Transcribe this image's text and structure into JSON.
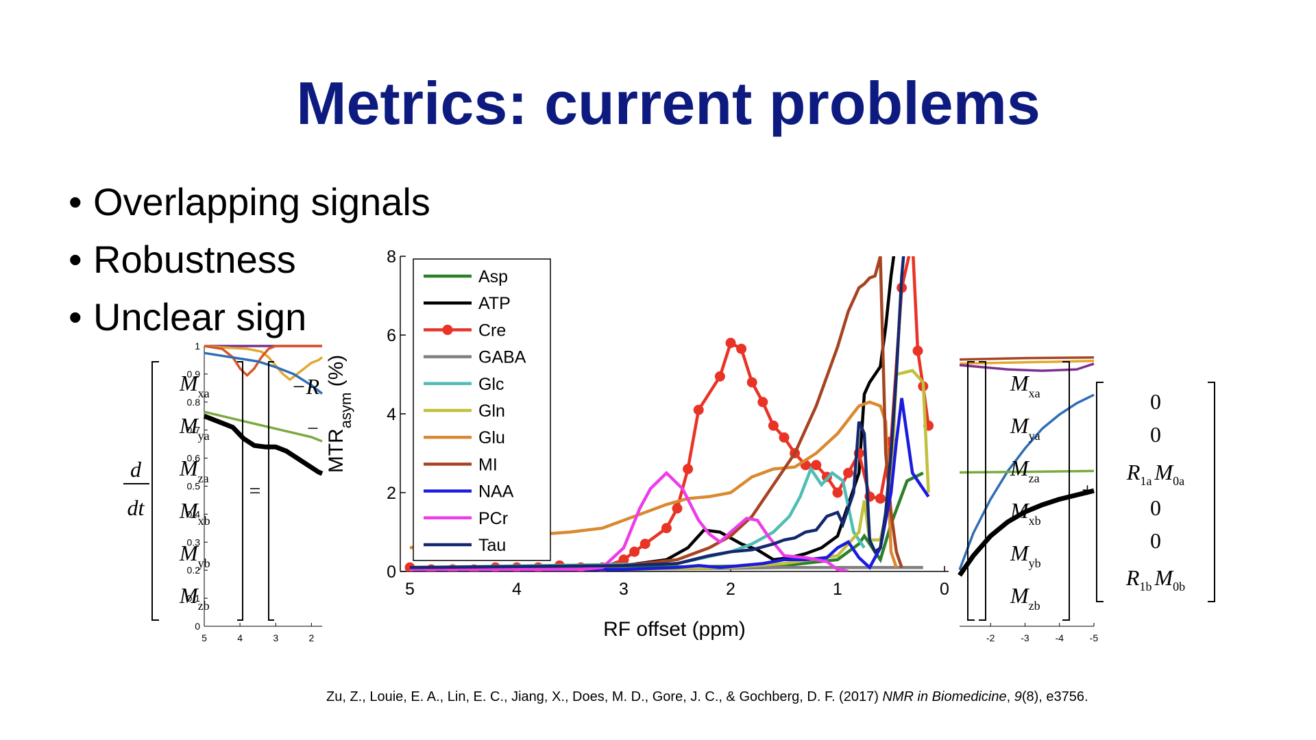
{
  "slide": {
    "title": "Metrics:  current problems",
    "bullets": [
      {
        "text": "Overlapping signals"
      },
      {
        "text": "Robustness"
      },
      {
        "text": "Unclear sign"
      }
    ],
    "citation": {
      "authors": "Zu, Z., Louie, E. A., Lin, E. C., Jiang, X., Does, M. D., Gore, J. C., & Gochberg, D. F. (2017) ",
      "journal": "NMR in Biomedicine",
      "comma": ", ",
      "volume": "9",
      "rest": "(8), e3756."
    }
  },
  "equation": {
    "d": "d",
    "dt": "dt",
    "vector": [
      "M",
      "M",
      "M",
      "M",
      "M",
      "M"
    ],
    "subscripts": [
      "xa",
      "ya",
      "za",
      "xb",
      "yb",
      "zb"
    ],
    "equals": "=",
    "minus_r": "−R",
    "minus": "−",
    "plus": "+",
    "right_vector": [
      {
        "r": "",
        "rsub": "",
        "m": "",
        "msub": "",
        "plain": "0"
      },
      {
        "r": "",
        "rsub": "",
        "m": "",
        "msub": "",
        "plain": "0"
      },
      {
        "r": "R",
        "rsub": "1a",
        "m": "M",
        "msub": "0a",
        "plain": ""
      },
      {
        "r": "",
        "rsub": "",
        "m": "",
        "msub": "",
        "plain": "0"
      },
      {
        "r": "",
        "rsub": "",
        "m": "",
        "msub": "",
        "plain": "0"
      },
      {
        "r": "R",
        "rsub": "1b",
        "m": "M",
        "msub": "0b",
        "plain": ""
      }
    ]
  },
  "chart_data": [
    {
      "type": "line",
      "title": "",
      "xlabel": "RF offset (ppm)",
      "ylabel": "MTR",
      "ylabel_sub": "asym",
      "ylabel_unit": " (%)",
      "xlim": [
        5,
        0
      ],
      "ylim": [
        0,
        8
      ],
      "x_reversed": true,
      "xticks": [
        5,
        4,
        3,
        2,
        1,
        0
      ],
      "yticks": [
        0,
        2,
        4,
        6,
        8
      ],
      "grid": false,
      "legend_position": "top-left",
      "series": [
        {
          "name": "Asp",
          "color": "#2d7f2a",
          "x": [
            5,
            3.0,
            1.5,
            1.0,
            0.8,
            0.75,
            0.6,
            0.5,
            0.35,
            0.2
          ],
          "y": [
            0.1,
            0.1,
            0.15,
            0.3,
            0.7,
            0.9,
            0.3,
            1.2,
            2.3,
            2.5
          ]
        },
        {
          "name": "ATP",
          "color": "#000000",
          "x": [
            5,
            3.0,
            2.6,
            2.4,
            2.25,
            2.1,
            1.9,
            1.75,
            1.6,
            1.45,
            1.3,
            1.15,
            1.0,
            0.9,
            0.8,
            0.75,
            0.7,
            0.6,
            0.55,
            0.5,
            0.45
          ],
          "y": [
            0.1,
            0.15,
            0.3,
            0.6,
            1.05,
            1.0,
            0.7,
            0.55,
            0.3,
            0.35,
            0.45,
            0.6,
            0.9,
            1.7,
            2.5,
            4.5,
            4.8,
            5.2,
            6.2,
            7.5,
            8.5
          ]
        },
        {
          "name": "Cre",
          "color": "#e83325",
          "marker": "circle",
          "x": [
            5,
            4.8,
            4.6,
            4.4,
            4.2,
            4.0,
            3.8,
            3.6,
            3.4,
            3.2,
            3.0,
            2.9,
            2.8,
            2.6,
            2.5,
            2.4,
            2.3,
            2.1,
            2.0,
            1.9,
            1.8,
            1.7,
            1.6,
            1.5,
            1.4,
            1.3,
            1.2,
            1.1,
            1.0,
            0.9,
            0.8,
            0.7,
            0.6,
            0.5,
            0.4,
            0.3,
            0.25,
            0.2,
            0.15
          ],
          "y": [
            0.1,
            0.05,
            0.05,
            0.05,
            0.1,
            0.1,
            0.1,
            0.15,
            0.1,
            0.1,
            0.3,
            0.5,
            0.7,
            1.1,
            1.6,
            2.6,
            4.1,
            4.95,
            5.8,
            5.65,
            4.8,
            4.3,
            3.7,
            3.4,
            3.0,
            2.7,
            2.7,
            2.4,
            2.0,
            2.5,
            3.0,
            1.9,
            1.85,
            3.3,
            7.2,
            8.4,
            5.6,
            4.7,
            3.7
          ]
        },
        {
          "name": "GABA",
          "color": "#808080",
          "x": [
            5,
            3.5,
            2.0,
            1.5,
            1.0,
            0.5,
            0.2
          ],
          "y": [
            0.05,
            0.05,
            0.08,
            0.1,
            0.1,
            0.1,
            0.1
          ]
        },
        {
          "name": "Glc",
          "color": "#4fbdb5",
          "x": [
            5,
            2.5,
            2.0,
            1.8,
            1.6,
            1.45,
            1.35,
            1.25,
            1.15,
            1.05,
            0.95,
            0.85,
            0.75
          ],
          "y": [
            0.1,
            0.2,
            0.5,
            0.7,
            1.0,
            1.4,
            1.9,
            2.6,
            2.2,
            2.5,
            2.3,
            1.0,
            0.6
          ]
        },
        {
          "name": "Gln",
          "color": "#c1c03d",
          "x": [
            5,
            3.0,
            2.0,
            1.5,
            1.0,
            0.8,
            0.75,
            0.7,
            0.6,
            0.5,
            0.45,
            0.3,
            0.2,
            0.15
          ],
          "y": [
            0.05,
            0.05,
            0.1,
            0.2,
            0.4,
            1.0,
            1.8,
            0.8,
            0.8,
            2.0,
            5.0,
            5.1,
            4.8,
            2.0
          ]
        },
        {
          "name": "Glu",
          "color": "#d98930",
          "x": [
            5,
            4.5,
            4.0,
            3.5,
            3.2,
            3.0,
            2.8,
            2.6,
            2.4,
            2.2,
            2.0,
            1.8,
            1.6,
            1.4,
            1.2,
            1.0,
            0.8,
            0.7,
            0.6,
            0.55,
            0.5,
            0.45
          ],
          "y": [
            0.6,
            0.8,
            0.9,
            1.0,
            1.1,
            1.3,
            1.5,
            1.7,
            1.85,
            1.9,
            2.0,
            2.4,
            2.6,
            2.65,
            3.0,
            3.5,
            4.2,
            4.3,
            4.2,
            3.8,
            0.5,
            0.1
          ]
        },
        {
          "name": "MI",
          "color": "#a64421",
          "x": [
            5,
            3.0,
            2.5,
            2.2,
            2.0,
            1.8,
            1.6,
            1.4,
            1.2,
            1.0,
            0.9,
            0.8,
            0.75,
            0.7,
            0.65,
            0.6,
            0.55,
            0.5,
            0.45,
            0.4
          ],
          "y": [
            0.1,
            0.15,
            0.3,
            0.6,
            0.9,
            1.4,
            2.2,
            3.0,
            4.2,
            5.7,
            6.6,
            7.2,
            7.3,
            7.45,
            7.5,
            8.0,
            3.0,
            1.5,
            0.5,
            0.1
          ]
        },
        {
          "name": "NAA",
          "color": "#1a1ae0",
          "x": [
            5,
            3.0,
            2.5,
            2.3,
            2.1,
            1.9,
            1.7,
            1.5,
            1.3,
            1.1,
            1.0,
            0.9,
            0.8,
            0.7,
            0.6,
            0.5,
            0.45,
            0.4,
            0.3,
            0.2,
            0.15
          ],
          "y": [
            0.05,
            0.05,
            0.1,
            0.15,
            0.1,
            0.15,
            0.2,
            0.3,
            0.3,
            0.35,
            0.6,
            0.75,
            0.35,
            0.1,
            0.6,
            2.0,
            3.3,
            4.4,
            2.5,
            2.1,
            1.9
          ]
        },
        {
          "name": "PCr",
          "color": "#ec3de8",
          "x": [
            5,
            3.4,
            3.2,
            3.0,
            2.85,
            2.75,
            2.6,
            2.45,
            2.3,
            2.2,
            2.1,
            2.0,
            1.85,
            1.75,
            1.65,
            1.5,
            1.3,
            1.1,
            1.0,
            0.9
          ],
          "y": [
            0.05,
            0.05,
            0.1,
            0.6,
            1.6,
            2.1,
            2.5,
            2.1,
            1.3,
            0.95,
            0.75,
            1.0,
            1.35,
            1.3,
            0.9,
            0.4,
            0.35,
            0.25,
            0.05,
            0.0
          ]
        },
        {
          "name": "Tau",
          "color": "#14286e",
          "x": [
            5,
            3.0,
            2.5,
            2.2,
            2.0,
            1.8,
            1.6,
            1.5,
            1.4,
            1.3,
            1.2,
            1.1,
            1.0,
            0.95,
            0.9,
            0.85,
            0.8,
            0.75,
            0.7,
            0.65,
            0.6,
            0.55,
            0.5,
            0.45,
            0.4,
            0.35,
            0.32
          ],
          "y": [
            0.1,
            0.15,
            0.2,
            0.4,
            0.5,
            0.55,
            0.7,
            0.8,
            0.85,
            1.0,
            1.05,
            1.4,
            1.5,
            1.2,
            1.6,
            2.0,
            3.8,
            3.5,
            0.8,
            0.5,
            0.6,
            1.5,
            3.0,
            5.0,
            7.5,
            9.0,
            9.5
          ]
        }
      ]
    },
    {
      "type": "line",
      "title": "",
      "xlim": [
        5,
        1.7
      ],
      "ylim": [
        0,
        1
      ],
      "x_reversed": true,
      "xticks": [
        5,
        4,
        3,
        2
      ],
      "yticks": [
        0,
        0.1,
        0.2,
        0.3,
        0.4,
        0.5,
        0.6,
        0.7,
        0.8,
        0.9,
        1
      ],
      "series": [
        {
          "color": "#7a2f8e",
          "x": [
            5,
            3.5,
            2.0,
            1.7
          ],
          "y": [
            1.0,
            1.0,
            1.0,
            1.0
          ]
        },
        {
          "color": "#e3a72f",
          "x": [
            5,
            4.5,
            3.8,
            3.4,
            3.2,
            3.0,
            2.8,
            2.6,
            2.4,
            2.2,
            2.0,
            1.8,
            1.7
          ],
          "y": [
            1.0,
            0.995,
            0.99,
            0.98,
            0.96,
            0.93,
            0.9,
            0.88,
            0.9,
            0.92,
            0.94,
            0.95,
            0.96
          ]
        },
        {
          "color": "#d95525",
          "x": [
            5,
            4.5,
            4.2,
            4.0,
            3.8,
            3.6,
            3.4,
            3.2,
            3.0,
            2.5,
            2.0,
            1.7
          ],
          "y": [
            1.0,
            0.99,
            0.96,
            0.92,
            0.895,
            0.92,
            0.96,
            0.99,
            1.0,
            1.0,
            1.0,
            1.0
          ]
        },
        {
          "color": "#2f6db5",
          "x": [
            5,
            4.5,
            4.0,
            3.5,
            3.0,
            2.5,
            2.0,
            1.7
          ],
          "y": [
            0.975,
            0.965,
            0.955,
            0.945,
            0.925,
            0.9,
            0.86,
            0.83
          ]
        },
        {
          "color": "#7aaa3e",
          "x": [
            5,
            4.0,
            3.0,
            2.0,
            1.7
          ],
          "y": [
            0.765,
            0.735,
            0.705,
            0.675,
            0.66
          ]
        },
        {
          "color": "#000000",
          "x": [
            5,
            4.6,
            4.2,
            3.9,
            3.6,
            3.3,
            3.0,
            2.7,
            2.4,
            2.1,
            1.8,
            1.7
          ],
          "y": [
            0.75,
            0.73,
            0.71,
            0.67,
            0.645,
            0.64,
            0.64,
            0.625,
            0.6,
            0.575,
            0.55,
            0.545
          ]
        }
      ]
    },
    {
      "type": "line",
      "title": "",
      "xlim": [
        -1.1,
        -5
      ],
      "x_reversed": true,
      "xticks": [
        -2,
        -3,
        -4,
        -5
      ],
      "series": [
        {
          "color": "#a64421",
          "x": [
            -1.1,
            -3.0,
            -5.0
          ],
          "y": [
            0.945,
            0.95,
            0.952
          ]
        },
        {
          "color": "#e3a72f",
          "x": [
            -1.1,
            -3.0,
            -5.0
          ],
          "y": [
            0.93,
            0.935,
            0.94
          ]
        },
        {
          "color": "#7a2f8e",
          "x": [
            -1.1,
            -2.5,
            -3.5,
            -4.5,
            -5.0
          ],
          "y": [
            0.925,
            0.91,
            0.905,
            0.91,
            0.93
          ]
        },
        {
          "color": "#2f6db5",
          "x": [
            -1.1,
            -1.5,
            -2.0,
            -2.5,
            -3.0,
            -3.5,
            -4.0,
            -4.5,
            -5.0
          ],
          "y": [
            0.2,
            0.33,
            0.45,
            0.55,
            0.63,
            0.7,
            0.75,
            0.79,
            0.82
          ]
        },
        {
          "color": "#7aaa3e",
          "x": [
            -1.1,
            -3.0,
            -5.0
          ],
          "y": [
            0.545,
            0.547,
            0.55
          ]
        },
        {
          "color": "#000000",
          "x": [
            -1.1,
            -1.5,
            -2.0,
            -2.5,
            -3.0,
            -3.5,
            -4.0,
            -4.5,
            -5.0
          ],
          "y": [
            0.18,
            0.25,
            0.32,
            0.37,
            0.405,
            0.43,
            0.45,
            0.465,
            0.48
          ]
        }
      ]
    }
  ]
}
